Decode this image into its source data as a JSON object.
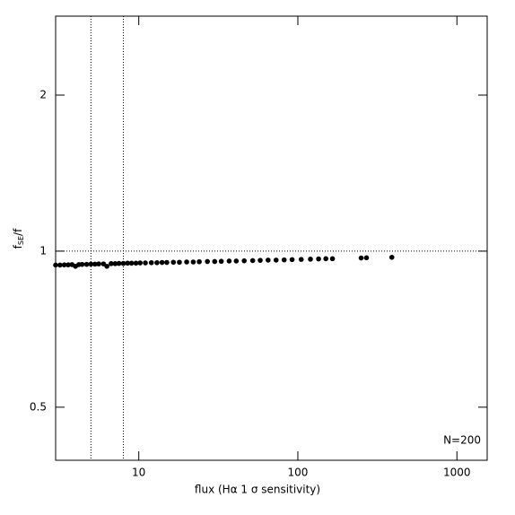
{
  "chart_data": {
    "type": "scatter",
    "xlabel": "flux (Hα 1 σ sensitivity)",
    "ylabel": {
      "base": "f",
      "sub": "SE",
      "rest": "/f"
    },
    "annotation": "N=200",
    "xlog": true,
    "ylog": true,
    "xlim": [
      3,
      1550
    ],
    "ylim": [
      0.395,
      2.84
    ],
    "xticks": [
      10,
      100,
      1000
    ],
    "yticks": [
      0.5,
      1,
      2
    ],
    "vlines": [
      5,
      8
    ],
    "hlines": [
      1
    ],
    "color": "#000000",
    "x": [
      3.0,
      3.2,
      3.4,
      3.6,
      3.8,
      4.0,
      4.2,
      4.4,
      4.7,
      5.0,
      5.3,
      5.6,
      6.0,
      6.3,
      6.7,
      7.1,
      7.5,
      8.0,
      8.5,
      9.0,
      9.6,
      10.2,
      11,
      12,
      13,
      14,
      15,
      16.5,
      18,
      20,
      22,
      24,
      27,
      30,
      33,
      37,
      41,
      46,
      52,
      58,
      65,
      73,
      82,
      92,
      105,
      120,
      135,
      150,
      165,
      250,
      270,
      390
    ],
    "y": [
      0.94,
      0.94,
      0.941,
      0.941,
      0.942,
      0.935,
      0.942,
      0.943,
      0.943,
      0.944,
      0.944,
      0.945,
      0.945,
      0.935,
      0.946,
      0.946,
      0.947,
      0.947,
      0.948,
      0.948,
      0.948,
      0.949,
      0.949,
      0.95,
      0.95,
      0.951,
      0.951,
      0.952,
      0.952,
      0.953,
      0.953,
      0.954,
      0.955,
      0.955,
      0.956,
      0.957,
      0.957,
      0.958,
      0.959,
      0.96,
      0.961,
      0.961,
      0.962,
      0.963,
      0.964,
      0.965,
      0.966,
      0.967,
      0.967,
      0.97,
      0.971,
      0.973
    ]
  }
}
